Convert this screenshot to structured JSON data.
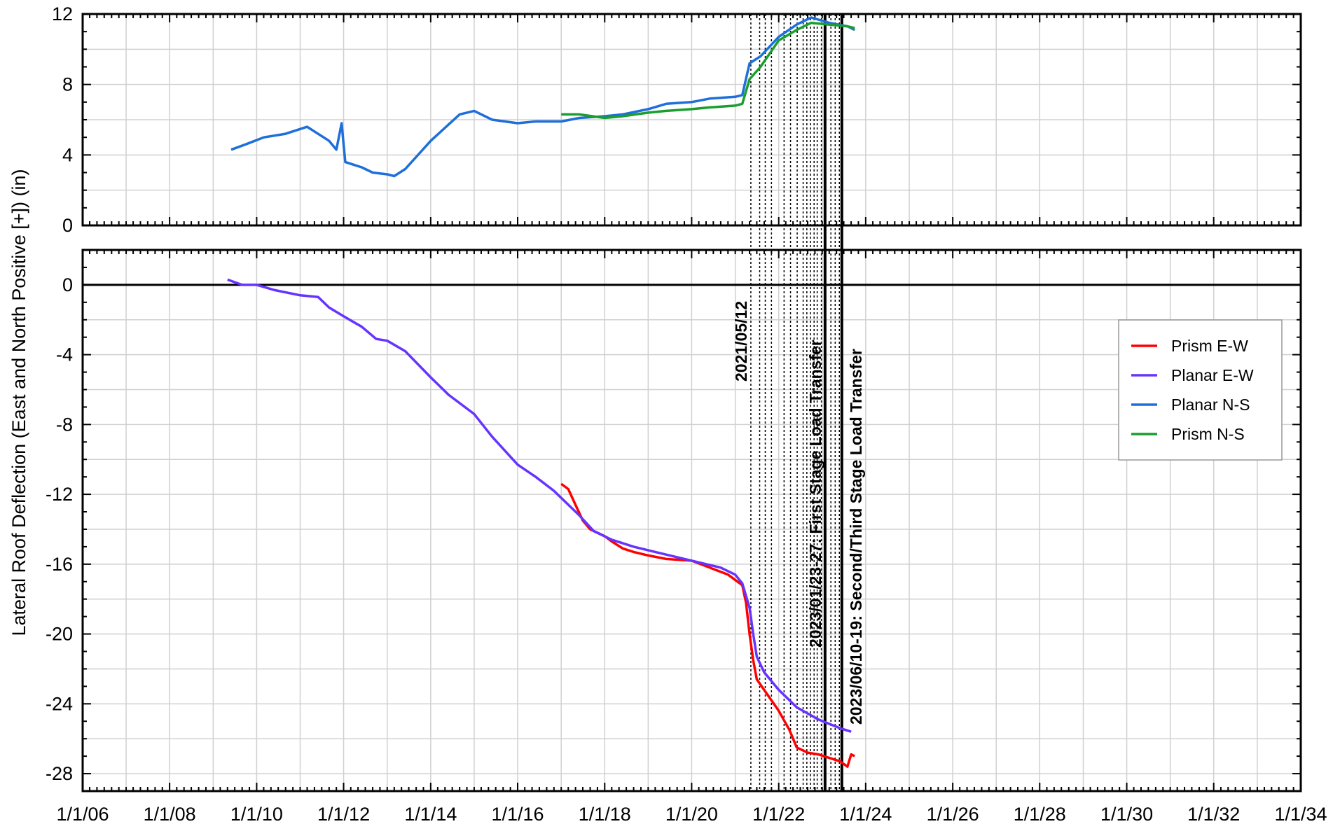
{
  "chart_data": {
    "type": "line",
    "ylabel": "Lateral Roof Deflection (East and North Positive [+]) (in)",
    "xlabel": "",
    "x_ticks": [
      "1/1/06",
      "1/1/08",
      "1/1/10",
      "1/1/12",
      "1/1/14",
      "1/1/16",
      "1/1/18",
      "1/1/20",
      "1/1/22",
      "1/1/24",
      "1/1/26",
      "1/1/28",
      "1/1/30",
      "1/1/32",
      "1/1/34"
    ],
    "xlim": [
      "2006-01-01",
      "2034-01-01"
    ],
    "grid": true,
    "legend_position": "upper-right of lower panel",
    "panels": [
      {
        "id": "top",
        "ylim": [
          0,
          12
        ],
        "y_ticks": [
          "0",
          "4",
          "8",
          "12"
        ],
        "series": [
          "Planar N-S",
          "Prism N-S"
        ]
      },
      {
        "id": "bottom",
        "ylim": [
          -29,
          2
        ],
        "y_ticks": [
          "0",
          "-4",
          "-8",
          "-12",
          "-16",
          "-20",
          "-24",
          "-28"
        ],
        "series": [
          "Prism E-W",
          "Planar E-W"
        ]
      }
    ],
    "series": [
      {
        "name": "Prism E-W",
        "color": "#ff0000",
        "panel": "bottom",
        "points": [
          [
            "2017-01-01",
            -11.4
          ],
          [
            "2017-03-01",
            -11.7
          ],
          [
            "2017-05-01",
            -12.6
          ],
          [
            "2017-07-01",
            -13.5
          ],
          [
            "2017-09-01",
            -14.0
          ],
          [
            "2017-11-01",
            -14.2
          ],
          [
            "2018-01-01",
            -14.4
          ],
          [
            "2018-03-01",
            -14.7
          ],
          [
            "2018-06-01",
            -15.1
          ],
          [
            "2018-09-01",
            -15.3
          ],
          [
            "2019-01-01",
            -15.5
          ],
          [
            "2019-06-01",
            -15.7
          ],
          [
            "2020-01-01",
            -15.8
          ],
          [
            "2020-06-01",
            -16.2
          ],
          [
            "2020-11-01",
            -16.6
          ],
          [
            "2021-03-01",
            -17.2
          ],
          [
            "2021-04-01",
            -18.2
          ],
          [
            "2021-05-01",
            -20.0
          ],
          [
            "2021-06-01",
            -21.5
          ],
          [
            "2021-07-01",
            -22.6
          ],
          [
            "2021-10-01",
            -23.5
          ],
          [
            "2022-01-01",
            -24.4
          ],
          [
            "2022-04-01",
            -25.5
          ],
          [
            "2022-06-01",
            -26.5
          ],
          [
            "2022-09-01",
            -26.8
          ],
          [
            "2022-12-01",
            -26.9
          ],
          [
            "2023-03-01",
            -27.1
          ],
          [
            "2023-06-01",
            -27.3
          ],
          [
            "2023-08-01",
            -27.6
          ],
          [
            "2023-09-01",
            -26.9
          ],
          [
            "2023-10-01",
            -27.0
          ]
        ]
      },
      {
        "name": "Planar E-W",
        "color": "#6633ff",
        "panel": "bottom",
        "points": [
          [
            "2009-05-01",
            0.3
          ],
          [
            "2009-09-01",
            0.0
          ],
          [
            "2010-01-01",
            0.0
          ],
          [
            "2010-06-01",
            -0.3
          ],
          [
            "2011-01-01",
            -0.6
          ],
          [
            "2011-06-01",
            -0.7
          ],
          [
            "2011-09-01",
            -1.3
          ],
          [
            "2012-01-01",
            -1.8
          ],
          [
            "2012-06-01",
            -2.4
          ],
          [
            "2012-10-01",
            -3.1
          ],
          [
            "2013-01-01",
            -3.2
          ],
          [
            "2013-06-01",
            -3.8
          ],
          [
            "2014-01-01",
            -5.3
          ],
          [
            "2014-06-01",
            -6.3
          ],
          [
            "2015-01-01",
            -7.4
          ],
          [
            "2015-06-01",
            -8.7
          ],
          [
            "2016-01-01",
            -10.3
          ],
          [
            "2016-06-01",
            -11.0
          ],
          [
            "2016-11-01",
            -11.8
          ],
          [
            "2017-06-01",
            -13.2
          ],
          [
            "2017-10-01",
            -14.1
          ],
          [
            "2018-03-01",
            -14.6
          ],
          [
            "2018-09-01",
            -15.0
          ],
          [
            "2019-03-01",
            -15.3
          ],
          [
            "2019-09-01",
            -15.6
          ],
          [
            "2020-03-01",
            -15.9
          ],
          [
            "2020-09-01",
            -16.2
          ],
          [
            "2021-01-01",
            -16.6
          ],
          [
            "2021-03-01",
            -17.1
          ],
          [
            "2021-05-01",
            -18.5
          ],
          [
            "2021-06-01",
            -20.0
          ],
          [
            "2021-07-01",
            -21.3
          ],
          [
            "2021-09-01",
            -22.2
          ],
          [
            "2022-01-01",
            -23.2
          ],
          [
            "2022-06-01",
            -24.2
          ],
          [
            "2022-12-01",
            -24.9
          ],
          [
            "2023-06-01",
            -25.4
          ],
          [
            "2023-09-01",
            -25.6
          ]
        ]
      },
      {
        "name": "Planar N-S",
        "color": "#1e6fd9",
        "panel": "top",
        "points": [
          [
            "2009-06-01",
            4.3
          ],
          [
            "2009-10-01",
            4.6
          ],
          [
            "2010-03-01",
            5.0
          ],
          [
            "2010-09-01",
            5.2
          ],
          [
            "2011-03-01",
            5.6
          ],
          [
            "2011-09-01",
            4.8
          ],
          [
            "2011-11-01",
            4.3
          ],
          [
            "2011-12-15",
            5.8
          ],
          [
            "2012-01-15",
            3.6
          ],
          [
            "2012-06-01",
            3.3
          ],
          [
            "2012-09-01",
            3.0
          ],
          [
            "2013-01-01",
            2.9
          ],
          [
            "2013-03-01",
            2.8
          ],
          [
            "2013-06-01",
            3.2
          ],
          [
            "2014-01-01",
            4.8
          ],
          [
            "2014-09-01",
            6.3
          ],
          [
            "2015-01-01",
            6.5
          ],
          [
            "2015-06-01",
            6.0
          ],
          [
            "2016-01-01",
            5.8
          ],
          [
            "2016-06-01",
            5.9
          ],
          [
            "2017-01-01",
            5.9
          ],
          [
            "2017-06-01",
            6.1
          ],
          [
            "2018-01-01",
            6.2
          ],
          [
            "2018-06-01",
            6.3
          ],
          [
            "2019-01-01",
            6.6
          ],
          [
            "2019-06-01",
            6.9
          ],
          [
            "2020-01-01",
            7.0
          ],
          [
            "2020-06-01",
            7.2
          ],
          [
            "2021-01-01",
            7.3
          ],
          [
            "2021-03-01",
            7.4
          ],
          [
            "2021-05-01",
            9.2
          ],
          [
            "2021-08-01",
            9.6
          ],
          [
            "2022-01-01",
            10.7
          ],
          [
            "2022-06-01",
            11.4
          ],
          [
            "2022-10-01",
            11.8
          ],
          [
            "2023-03-01",
            11.5
          ],
          [
            "2023-08-01",
            11.3
          ],
          [
            "2023-10-01",
            11.1
          ]
        ]
      },
      {
        "name": "Prism N-S",
        "color": "#1a9e2e",
        "panel": "top",
        "points": [
          [
            "2017-01-01",
            6.3
          ],
          [
            "2017-06-01",
            6.3
          ],
          [
            "2018-01-01",
            6.1
          ],
          [
            "2018-06-01",
            6.2
          ],
          [
            "2019-01-01",
            6.4
          ],
          [
            "2019-06-01",
            6.5
          ],
          [
            "2020-01-01",
            6.6
          ],
          [
            "2020-06-01",
            6.7
          ],
          [
            "2021-01-01",
            6.8
          ],
          [
            "2021-03-01",
            6.9
          ],
          [
            "2021-05-01",
            8.3
          ],
          [
            "2021-08-01",
            9.0
          ],
          [
            "2022-01-01",
            10.5
          ],
          [
            "2022-06-01",
            11.1
          ],
          [
            "2022-10-01",
            11.5
          ],
          [
            "2023-03-01",
            11.4
          ],
          [
            "2023-08-01",
            11.3
          ],
          [
            "2023-10-01",
            11.2
          ]
        ]
      }
    ],
    "event_lines": {
      "dotted": [
        "2021-05-12",
        "2021-07-25",
        "2021-09-10",
        "2021-11-01",
        "2022-02-15",
        "2022-04-10",
        "2022-06-05",
        "2022-07-25",
        "2022-08-25",
        "2022-09-25",
        "2022-10-25",
        "2022-11-20",
        "2022-12-25",
        "2023-03-15",
        "2023-04-20",
        "2023-05-25"
      ],
      "solid": [
        "2023-01-25",
        "2023-06-15"
      ]
    },
    "annotations": [
      {
        "date": "2021-05-12",
        "text": "2021/05/12"
      },
      {
        "date": "2023-01-25",
        "text": "2023/01/23-27: First Stage Load Transfer"
      },
      {
        "date": "2023-06-15",
        "text": "2023/06/10-19: Second/Third Stage Load Transfer"
      }
    ]
  }
}
